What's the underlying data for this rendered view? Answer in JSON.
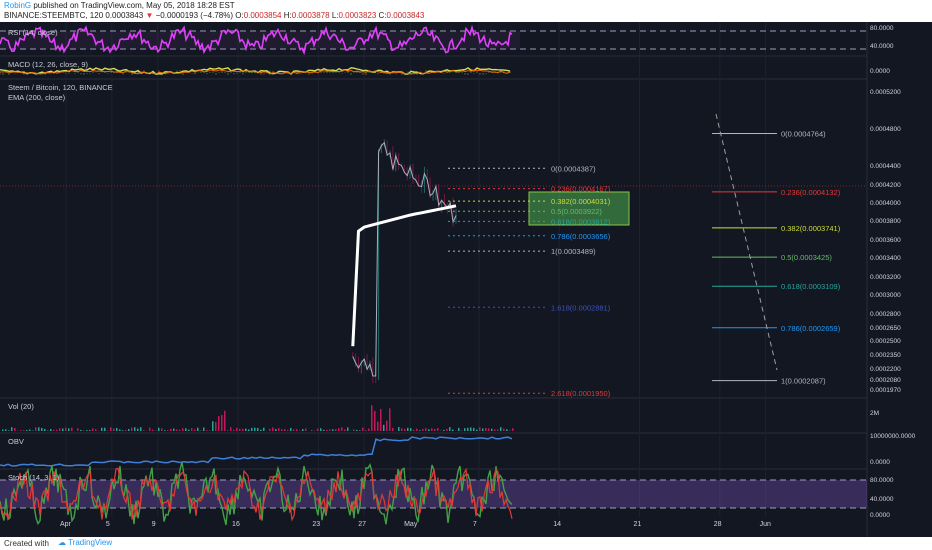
{
  "header": {
    "author": "RobinG",
    "published": "published on TradingView.com, May 05, 2018 18:28 EST",
    "symbol": "BINANCE:STEEMBTC, 120",
    "last": "0.0003843",
    "change": "−0.0000193 (−4.78%)",
    "open_label": "O:",
    "open": "0.0003854",
    "high_label": "H:",
    "high": "0.0003878",
    "low_label": "L:",
    "low": "0.0003823",
    "close_label": "C:",
    "close": "0.0003843"
  },
  "panes": {
    "rsi": {
      "label": "RSI (14, close)",
      "ticks": [
        "80.0000",
        "40.0000"
      ]
    },
    "macd": {
      "label": "MACD (12, 26, close, 9)",
      "ticks": [
        "0.0000"
      ]
    },
    "main": {
      "label": "Steem / Bitcoin, 120, BINANCE",
      "ema_label": "EMA (200, close)"
    },
    "vol": {
      "label": "Vol (20)",
      "ticks": [
        "2M"
      ]
    },
    "obv": {
      "label": "OBV",
      "ticks": [
        "10000000.0000",
        "0.0000"
      ]
    },
    "stoch": {
      "label": "Stoch (14, 3, 1)",
      "ticks": [
        "80.0000",
        "40.0000",
        "0.0000"
      ]
    }
  },
  "fib_retracement": [
    {
      "level": "0",
      "value": "0.0004387",
      "color": "#b2b5be"
    },
    {
      "level": "0.236",
      "value": "0.0004167",
      "color": "#e53935"
    },
    {
      "level": "0.382",
      "value": "0.0004031",
      "color": "#cddc39"
    },
    {
      "level": "0.5",
      "value": "0.0003922",
      "color": "#66bb6a"
    },
    {
      "level": "0.618",
      "value": "0.0003812",
      "color": "#26a69a"
    },
    {
      "level": "0.786",
      "value": "0.0003656",
      "color": "#2196f3"
    },
    {
      "level": "1",
      "value": "0.0003489",
      "color": "#b2b5be"
    },
    {
      "level": "1.618",
      "value": "0.0002881",
      "color": "#3f51b5"
    },
    {
      "level": "2.618",
      "value": "0.0001950",
      "color": "#e53935"
    }
  ],
  "fib_projection": [
    {
      "level": "0",
      "value": "0.0004764",
      "color": "#b2b5be"
    },
    {
      "level": "0.236",
      "value": "0.0004132",
      "color": "#e53935"
    },
    {
      "level": "0.382",
      "value": "0.0003741",
      "color": "#cddc39"
    },
    {
      "level": "0.5",
      "value": "0.0003425",
      "color": "#66bb6a"
    },
    {
      "level": "0.618",
      "value": "0.0003109",
      "color": "#26a69a"
    },
    {
      "level": "0.786",
      "value": "0.0002659",
      "color": "#2196f3"
    },
    {
      "level": "1",
      "value": "0.0002087",
      "color": "#b2b5be"
    }
  ],
  "chart_data": {
    "type": "line",
    "title": "Steem / Bitcoin, 120, BINANCE",
    "y_axis_ticks": [
      "0.0005200",
      "0.0004800",
      "0.0004400",
      "0.0004200",
      "0.0004000",
      "0.0003800",
      "0.0003600",
      "0.0003400",
      "0.0003200",
      "0.0003000",
      "0.0002800",
      "0.0002650",
      "0.0002500",
      "0.0002350",
      "0.0002200",
      "0.0002080",
      "0.0001970"
    ],
    "x_axis_ticks": [
      "Apr",
      "5",
      "9",
      "16",
      "23",
      "27",
      "May",
      "7",
      "14",
      "21",
      "28",
      "Jun"
    ],
    "ylim": [
      0.000192,
      0.00053
    ],
    "series": [
      {
        "name": "Steem / Bitcoin",
        "color": "#b2b5be",
        "x": [
          "Mar 29",
          "Mar 31",
          "Apr 2",
          "Apr 3",
          "Apr 4",
          "Apr 5",
          "Apr 7",
          "Apr 9",
          "Apr 10",
          "Apr 11",
          "Apr 13",
          "Apr 15",
          "Apr 17",
          "Apr 19",
          "Apr 21",
          "Apr 23",
          "Apr 24",
          "Apr 25",
          "Apr 26",
          "Apr 27",
          "Apr 29",
          "May 1",
          "May 3",
          "May 5"
        ],
        "values": [
          0.000235,
          0.000222,
          0.00021,
          0.000238,
          0.000272,
          0.000255,
          0.00026,
          0.000268,
          0.00029,
          0.000362,
          0.000348,
          0.000338,
          0.000355,
          0.000372,
          0.000382,
          0.000352,
          0.0004,
          0.00045,
          0.000465,
          0.000482,
          0.000452,
          0.00043,
          0.000418,
          0.000384
        ]
      },
      {
        "name": "EMA (200, close)",
        "color": "#ffffff",
        "x": [
          "Mar 29",
          "Apr 3",
          "Apr 5",
          "Apr 9",
          "Apr 11",
          "Apr 15",
          "Apr 19",
          "Apr 23",
          "Apr 25",
          "Apr 27",
          "May 1",
          "May 5"
        ],
        "values": [
          0.000246,
          0.000232,
          0.000245,
          0.000254,
          0.00027,
          0.000298,
          0.000322,
          0.000343,
          0.000357,
          0.000375,
          0.000388,
          0.000398
        ]
      }
    ]
  },
  "footer": {
    "created": "Created with",
    "brand": "TradingView"
  }
}
